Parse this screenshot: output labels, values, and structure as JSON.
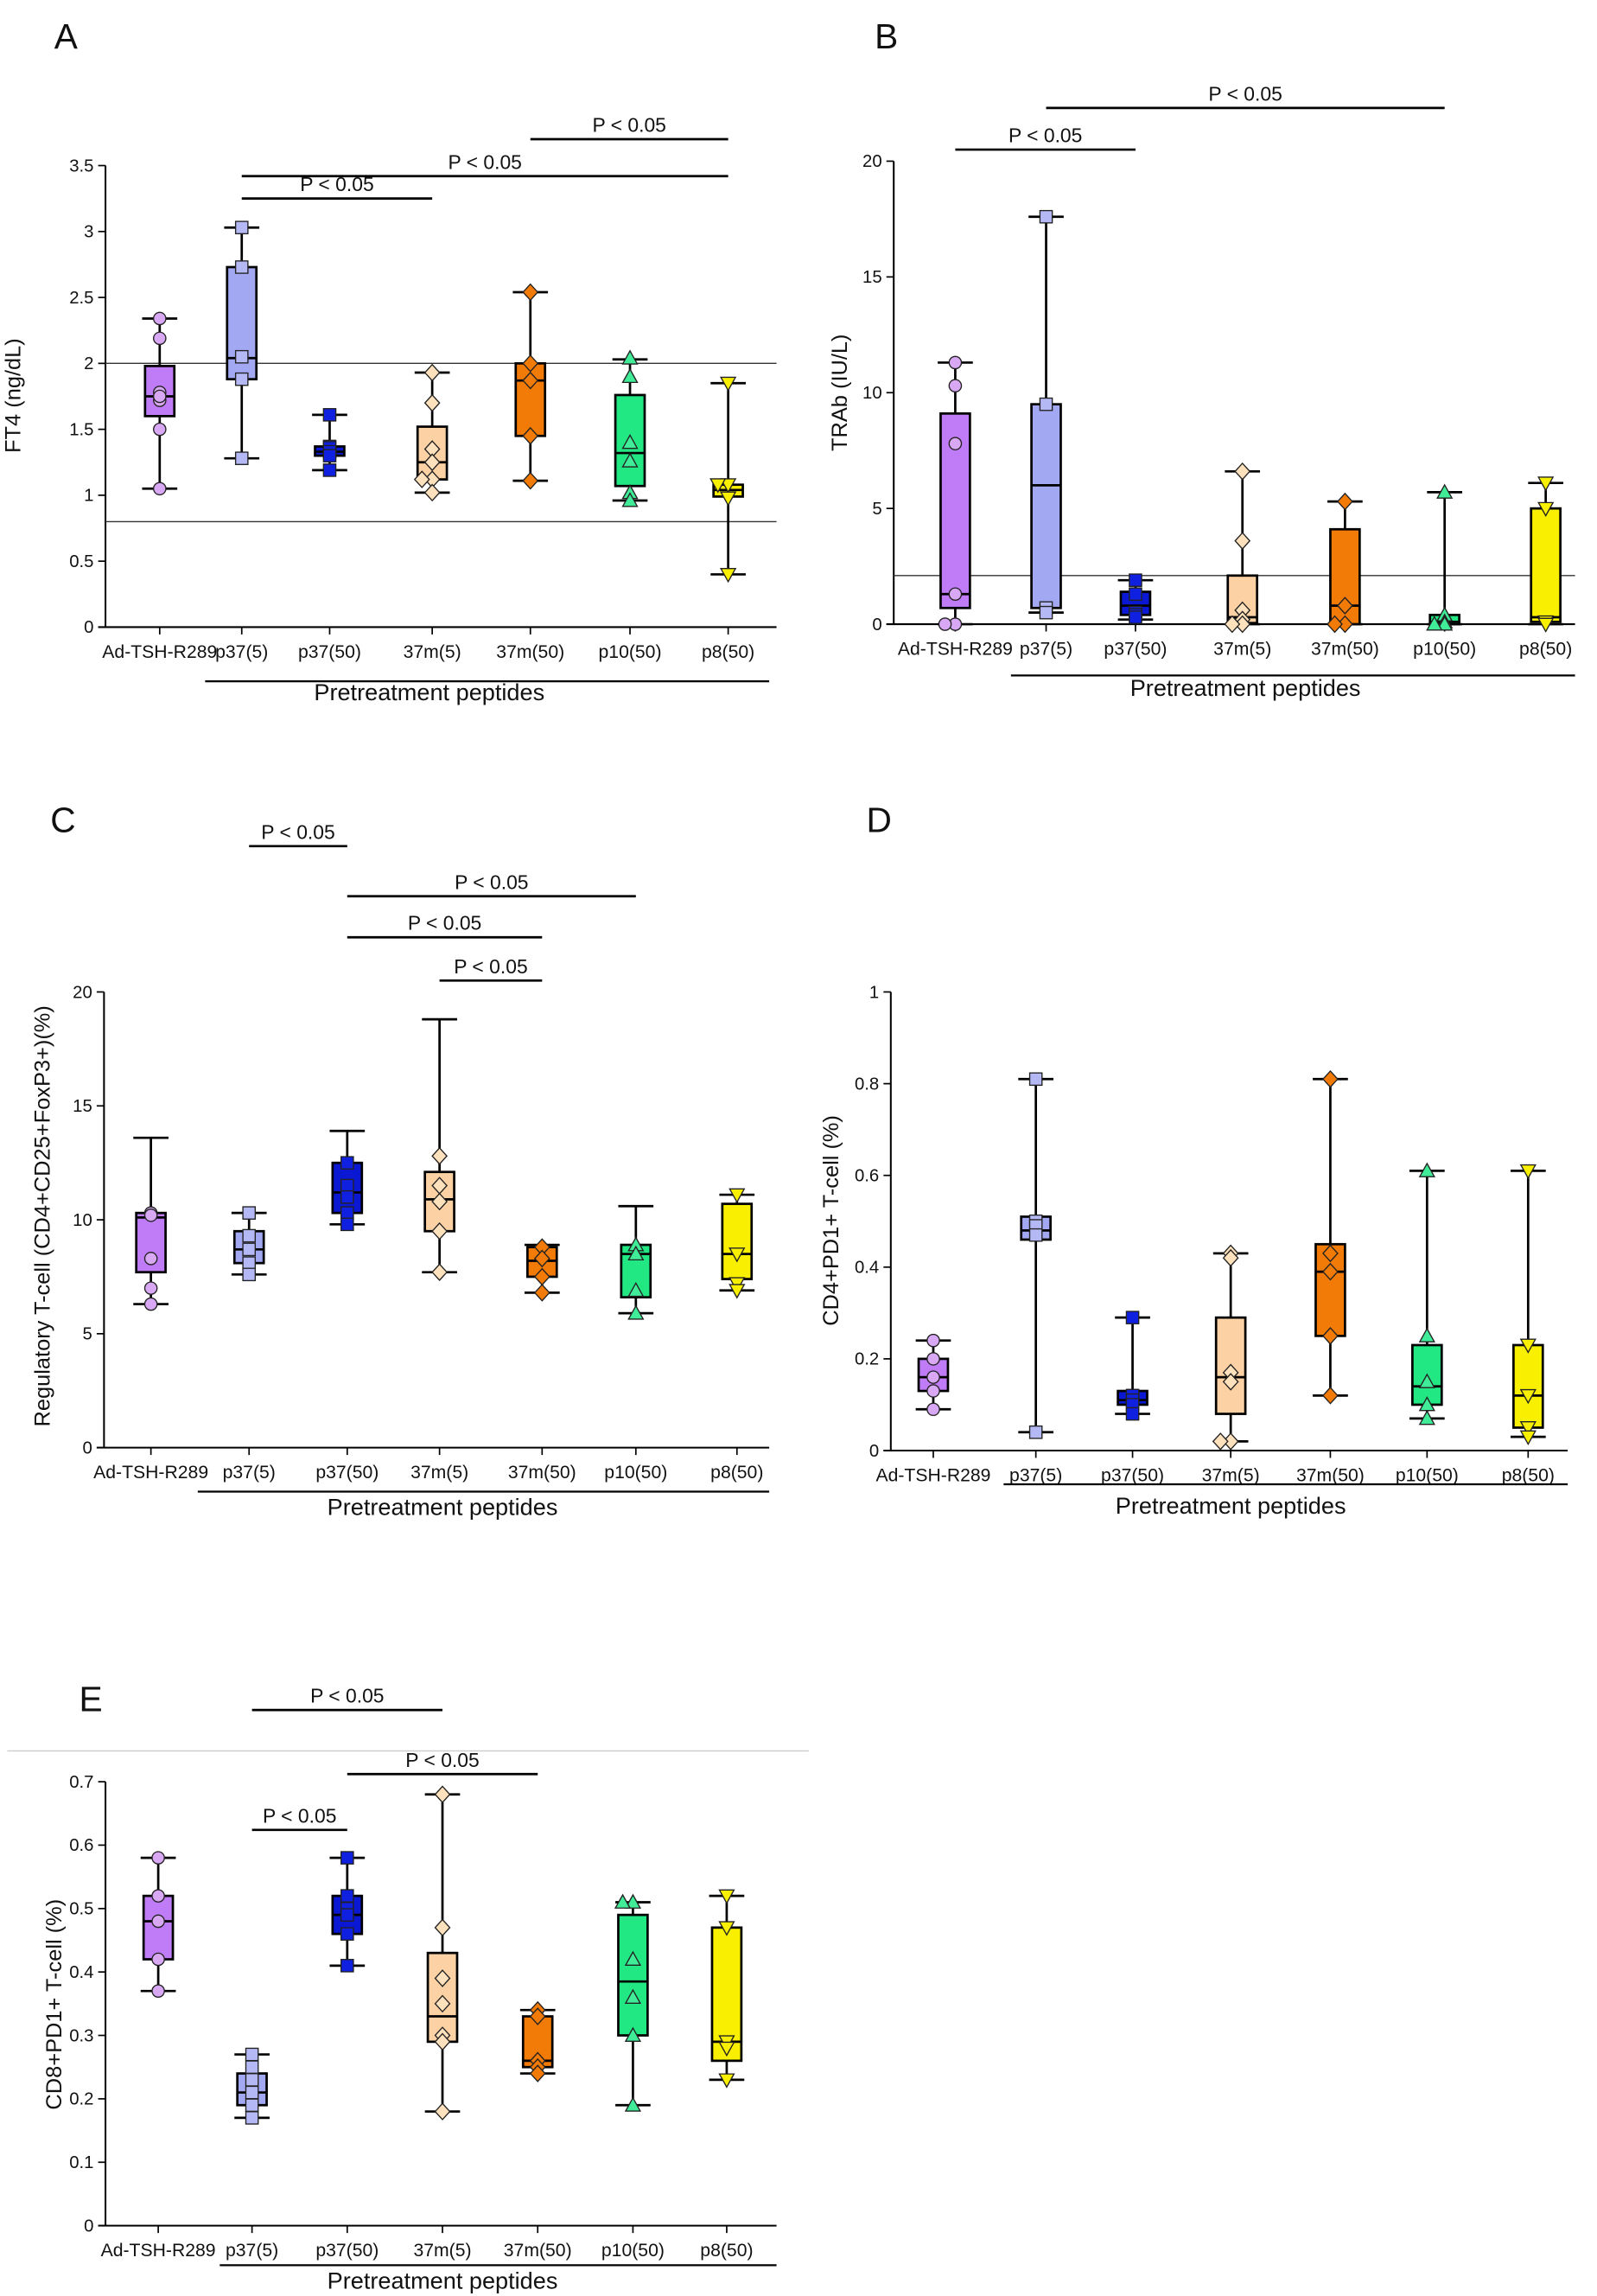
{
  "chart_data": [
    {
      "panel": "A",
      "type": "box",
      "ylabel": "FT4 (ng/dL)",
      "xlabel": "Pretreatment peptides",
      "ylim": [
        0,
        3.5
      ],
      "yticks": [
        "0",
        "0.5",
        "1",
        "1.5",
        "2",
        "2.5",
        "3",
        "3.5"
      ],
      "reference_lines": [
        2,
        0.8
      ],
      "categories": [
        "Ad-TSH-R289",
        "p37(5)",
        "p37(50)",
        "37m(5)",
        "37m(50)",
        "p10(50)",
        "p8(50)"
      ],
      "groups": [
        {
          "min": 1.05,
          "q1": 1.6,
          "median": 1.75,
          "q3": 1.98,
          "max": 2.34,
          "points": [
            2.34,
            2.19,
            1.78,
            1.72,
            1.75,
            1.5,
            1.05
          ]
        },
        {
          "min": 1.28,
          "q1": 1.88,
          "median": 2.04,
          "q3": 2.73,
          "max": 3.03,
          "points": [
            3.03,
            2.73,
            2.05,
            1.88,
            1.28
          ]
        },
        {
          "min": 1.19,
          "q1": 1.3,
          "median": 1.33,
          "q3": 1.37,
          "max": 1.61,
          "points": [
            1.61,
            1.37,
            1.36,
            1.33,
            1.3,
            1.19
          ]
        },
        {
          "min": 1.02,
          "q1": 1.12,
          "median": 1.25,
          "q3": 1.52,
          "max": 1.93,
          "points": [
            1.93,
            1.7,
            1.35,
            1.25,
            1.12,
            1.12,
            1.02
          ]
        },
        {
          "min": 1.11,
          "q1": 1.45,
          "median": 1.87,
          "q3": 2.0,
          "max": 2.54,
          "points": [
            2.54,
            2.0,
            1.87,
            1.45,
            1.11
          ]
        },
        {
          "min": 0.96,
          "q1": 1.07,
          "median": 1.32,
          "q3": 1.76,
          "max": 2.03,
          "points": [
            2.04,
            1.9,
            1.4,
            1.26,
            1.02,
            0.96
          ]
        },
        {
          "min": 0.4,
          "q1": 0.99,
          "median": 1.04,
          "q3": 1.08,
          "max": 1.85,
          "points": [
            1.85,
            1.08,
            1.08,
            0.98,
            0.4
          ]
        }
      ],
      "significance": [
        {
          "from": 1,
          "to": 3,
          "level": 3.25,
          "label": "P < 0.05"
        },
        {
          "from": 1,
          "to": 6,
          "level": 3.42,
          "label": "P < 0.05"
        },
        {
          "from": 4,
          "to": 6,
          "level": 3.7,
          "label": "P < 0.05"
        }
      ]
    },
    {
      "panel": "B",
      "type": "box",
      "ylabel": "TRAb (IU/L)",
      "xlabel": "Pretreatment peptides",
      "ylim": [
        0,
        20
      ],
      "yticks": [
        "0",
        "5",
        "10",
        "15",
        "20"
      ],
      "reference_lines": [
        2.1
      ],
      "categories": [
        "Ad-TSH-R289",
        "p37(5)",
        "p37(50)",
        "37m(5)",
        "37m(50)",
        "p10(50)",
        "p8(50)"
      ],
      "groups": [
        {
          "min": 0,
          "q1": 0.7,
          "median": 1.3,
          "q3": 9.1,
          "max": 11.3,
          "points": [
            11.3,
            10.3,
            7.8,
            1.3,
            0,
            0
          ]
        },
        {
          "min": 0.5,
          "q1": 0.7,
          "median": 6.0,
          "q3": 9.5,
          "max": 17.6,
          "points": [
            17.6,
            9.5,
            0.7,
            0.5
          ]
        },
        {
          "min": 0.2,
          "q1": 0.4,
          "median": 0.8,
          "q3": 1.4,
          "max": 1.9,
          "points": [
            1.9,
            1.3,
            0.5,
            0.4,
            0.3
          ]
        },
        {
          "min": 0,
          "q1": 0.05,
          "median": 0.3,
          "q3": 2.1,
          "max": 6.6,
          "points": [
            6.6,
            3.6,
            0.6,
            0.2,
            0,
            0
          ]
        },
        {
          "min": 0,
          "q1": 0,
          "median": 0.8,
          "q3": 4.1,
          "max": 5.3,
          "points": [
            5.3,
            0.8,
            0,
            0
          ]
        },
        {
          "min": 0,
          "q1": 0,
          "median": 0.1,
          "q3": 0.4,
          "max": 5.7,
          "points": [
            5.7,
            0.4,
            0.1,
            0,
            0
          ]
        },
        {
          "min": 0,
          "q1": 0.1,
          "median": 0.3,
          "q3": 5.0,
          "max": 6.1,
          "points": [
            6.1,
            5.0,
            0.1,
            0
          ]
        }
      ],
      "significance": [
        {
          "from": 0,
          "to": 2,
          "level": 20.5,
          "label": "P < 0.05"
        },
        {
          "from": 1,
          "to": 5,
          "level": 22.3,
          "label": "P < 0.05"
        }
      ]
    },
    {
      "panel": "C",
      "type": "box",
      "ylabel": "Regulatory T-cell (CD4+CD25+FoxP3+)(%)",
      "xlabel": "Pretreatment peptides",
      "ylim": [
        0,
        20
      ],
      "yticks": [
        "0",
        "5",
        "10",
        "15",
        "20"
      ],
      "reference_lines": [],
      "categories": [
        "Ad-TSH-R289",
        "p37(5)",
        "p37(50)",
        "37m(5)",
        "37m(50)",
        "p10(50)",
        "p8(50)"
      ],
      "groups": [
        {
          "min": 6.3,
          "q1": 7.7,
          "median": 10.1,
          "q3": 10.3,
          "max": 13.6,
          "points": [
            10.3,
            10.2,
            8.3,
            7.0,
            6.3
          ]
        },
        {
          "min": 7.6,
          "q1": 8.1,
          "median": 8.7,
          "q3": 9.5,
          "max": 10.3,
          "points": [
            10.3,
            9.3,
            8.7,
            8.1,
            7.6
          ]
        },
        {
          "min": 9.8,
          "q1": 10.3,
          "median": 11.2,
          "q3": 12.5,
          "max": 13.9,
          "points": [
            12.5,
            11.5,
            11.0,
            10.3,
            9.8
          ]
        },
        {
          "min": 7.7,
          "q1": 9.5,
          "median": 10.9,
          "q3": 12.1,
          "max": 18.8,
          "points": [
            12.8,
            11.5,
            10.8,
            9.5,
            7.7
          ]
        },
        {
          "min": 6.8,
          "q1": 7.5,
          "median": 8.2,
          "q3": 8.8,
          "max": 8.9,
          "points": [
            8.8,
            8.3,
            7.5,
            6.8
          ]
        },
        {
          "min": 5.9,
          "q1": 6.6,
          "median": 8.5,
          "q3": 8.9,
          "max": 10.6,
          "points": [
            8.9,
            8.5,
            6.9,
            5.9
          ]
        },
        {
          "min": 6.9,
          "q1": 7.4,
          "median": 8.5,
          "q3": 10.7,
          "max": 11.1,
          "points": [
            11.1,
            8.5,
            7.2,
            6.9
          ]
        }
      ],
      "significance": [
        {
          "from": 1,
          "to": 2,
          "level": 26.4,
          "label": "P < 0.05"
        },
        {
          "from": 2,
          "to": 5,
          "level": 24.2,
          "label": "P < 0.05"
        },
        {
          "from": 2,
          "to": 4,
          "level": 22.4,
          "label": "P < 0.05"
        },
        {
          "from": 3,
          "to": 4,
          "level": 20.5,
          "label": "P < 0.05"
        }
      ]
    },
    {
      "panel": "D",
      "type": "box",
      "ylabel": "CD4+PD1+ T-cell (%)",
      "xlabel": "Pretreatment peptides",
      "ylim": [
        0,
        1
      ],
      "yticks": [
        "0",
        "0.2",
        "0.4",
        "0.6",
        "0.8",
        "1"
      ],
      "reference_lines": [],
      "categories": [
        "Ad-TSH-R289",
        "p37(5)",
        "p37(50)",
        "37m(5)",
        "37m(50)",
        "p10(50)",
        "p8(50)"
      ],
      "groups": [
        {
          "min": 0.09,
          "q1": 0.13,
          "median": 0.16,
          "q3": 0.2,
          "max": 0.24,
          "points": [
            0.24,
            0.2,
            0.16,
            0.13,
            0.09
          ]
        },
        {
          "min": 0.04,
          "q1": 0.46,
          "median": 0.48,
          "q3": 0.51,
          "max": 0.81,
          "points": [
            0.81,
            0.5,
            0.49,
            0.47,
            0.04
          ]
        },
        {
          "min": 0.08,
          "q1": 0.1,
          "median": 0.11,
          "q3": 0.13,
          "max": 0.29,
          "points": [
            0.29,
            0.12,
            0.11,
            0.1,
            0.08
          ]
        },
        {
          "min": 0.02,
          "q1": 0.08,
          "median": 0.16,
          "q3": 0.29,
          "max": 0.43,
          "points": [
            0.43,
            0.42,
            0.17,
            0.15,
            0.02,
            0.02
          ]
        },
        {
          "min": 0.12,
          "q1": 0.25,
          "median": 0.39,
          "q3": 0.45,
          "max": 0.81,
          "points": [
            0.81,
            0.43,
            0.39,
            0.25,
            0.12
          ]
        },
        {
          "min": 0.07,
          "q1": 0.1,
          "median": 0.14,
          "q3": 0.23,
          "max": 0.61,
          "points": [
            0.61,
            0.25,
            0.15,
            0.1,
            0.07
          ]
        },
        {
          "min": 0.03,
          "q1": 0.05,
          "median": 0.12,
          "q3": 0.23,
          "max": 0.61,
          "points": [
            0.61,
            0.23,
            0.12,
            0.05,
            0.03
          ]
        }
      ],
      "significance": []
    },
    {
      "panel": "E",
      "type": "box",
      "ylabel": "CD8+PD1+ T-cell (%)",
      "xlabel": "Pretreatment peptides",
      "ylim": [
        0,
        0.7
      ],
      "yticks": [
        "0",
        "0.1",
        "0.2",
        "0.3",
        "0.4",
        "0.5",
        "0.6",
        "0.7"
      ],
      "reference_lines": [],
      "categories": [
        "Ad-TSH-R289",
        "p37(5)",
        "p37(50)",
        "37m(5)",
        "37m(50)",
        "p10(50)",
        "p8(50)"
      ],
      "groups": [
        {
          "min": 0.37,
          "q1": 0.42,
          "median": 0.48,
          "q3": 0.52,
          "max": 0.58,
          "points": [
            0.58,
            0.52,
            0.48,
            0.42,
            0.37
          ]
        },
        {
          "min": 0.17,
          "q1": 0.19,
          "median": 0.21,
          "q3": 0.24,
          "max": 0.27,
          "points": [
            0.27,
            0.25,
            0.23,
            0.21,
            0.19,
            0.17
          ]
        },
        {
          "min": 0.41,
          "q1": 0.46,
          "median": 0.49,
          "q3": 0.52,
          "max": 0.58,
          "points": [
            0.58,
            0.52,
            0.5,
            0.49,
            0.46,
            0.41
          ]
        },
        {
          "min": 0.18,
          "q1": 0.29,
          "median": 0.33,
          "q3": 0.43,
          "max": 0.68,
          "points": [
            0.68,
            0.47,
            0.39,
            0.35,
            0.3,
            0.29,
            0.18
          ]
        },
        {
          "min": 0.24,
          "q1": 0.25,
          "median": 0.26,
          "q3": 0.33,
          "max": 0.34,
          "points": [
            0.34,
            0.33,
            0.26,
            0.25,
            0.24
          ]
        },
        {
          "min": 0.19,
          "q1": 0.3,
          "median": 0.385,
          "q3": 0.49,
          "max": 0.51,
          "points": [
            0.51,
            0.51,
            0.42,
            0.36,
            0.3,
            0.19
          ]
        },
        {
          "min": 0.23,
          "q1": 0.26,
          "median": 0.29,
          "q3": 0.47,
          "max": 0.52,
          "points": [
            0.52,
            0.47,
            0.29,
            0.28,
            0.23
          ]
        }
      ],
      "significance": [
        {
          "from": 1,
          "to": 3,
          "level": 0.813,
          "label": "P < 0.05"
        },
        {
          "from": 2,
          "to": 4,
          "level": 0.712,
          "label": "P < 0.05"
        },
        {
          "from": 1,
          "to": 2,
          "level": 0.624,
          "label": "P < 0.05"
        }
      ]
    }
  ],
  "group_styles": [
    {
      "box": "#c07cf6",
      "marker": "#d9a8f4",
      "shape": "circle"
    },
    {
      "box": "#a3a8f2",
      "marker": "#b4b8f4",
      "shape": "square"
    },
    {
      "box": "#0a18d4",
      "marker": "#1020e0",
      "shape": "square"
    },
    {
      "box": "#fcd2a4",
      "marker": "#fde0bc",
      "shape": "diamond"
    },
    {
      "box": "#f27a06",
      "marker": "#f27a06",
      "shape": "diamond"
    },
    {
      "box": "#22e884",
      "marker": "#40ec98",
      "shape": "triangle"
    },
    {
      "box": "#f8f000",
      "marker": "#f8f000",
      "shape": "triangle-down"
    }
  ]
}
